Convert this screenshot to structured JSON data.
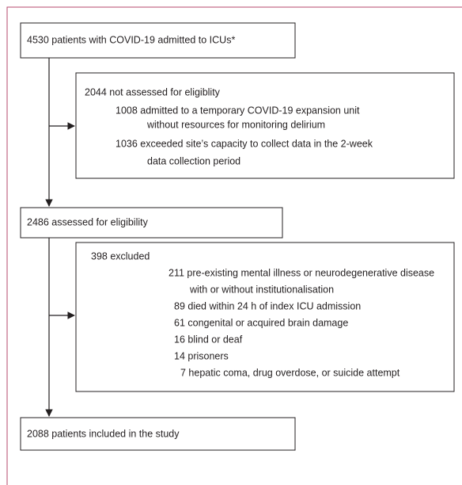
{
  "nodes": [
    {
      "label": "4530 patients with COVID-19 admitted to ICUs*"
    },
    {
      "label": "2044 not assessed for eligiblity",
      "details": [
        [
          "1008 admitted to a temporary COVID-19 expansion unit",
          "without resources for monitoring delirium"
        ],
        [
          "1036 exceeded site’s capacity to collect data in the 2-week",
          "data collection period"
        ]
      ]
    },
    {
      "label": "2486 assessed for eligibility"
    },
    {
      "label": "398 excluded",
      "details": [
        [
          "211 pre-existing mental illness or neurodegenerative disease",
          "with or without institutionalisation"
        ],
        [
          "89 died within 24 h of index ICU admission"
        ],
        [
          "61 congenital or acquired brain damage"
        ],
        [
          "16 blind or deaf"
        ],
        [
          "14 prisoners"
        ],
        [
          "7 hepatic coma, drug overdose, or suicide attempt"
        ]
      ]
    },
    {
      "label": "2088 patients included in the study"
    }
  ]
}
